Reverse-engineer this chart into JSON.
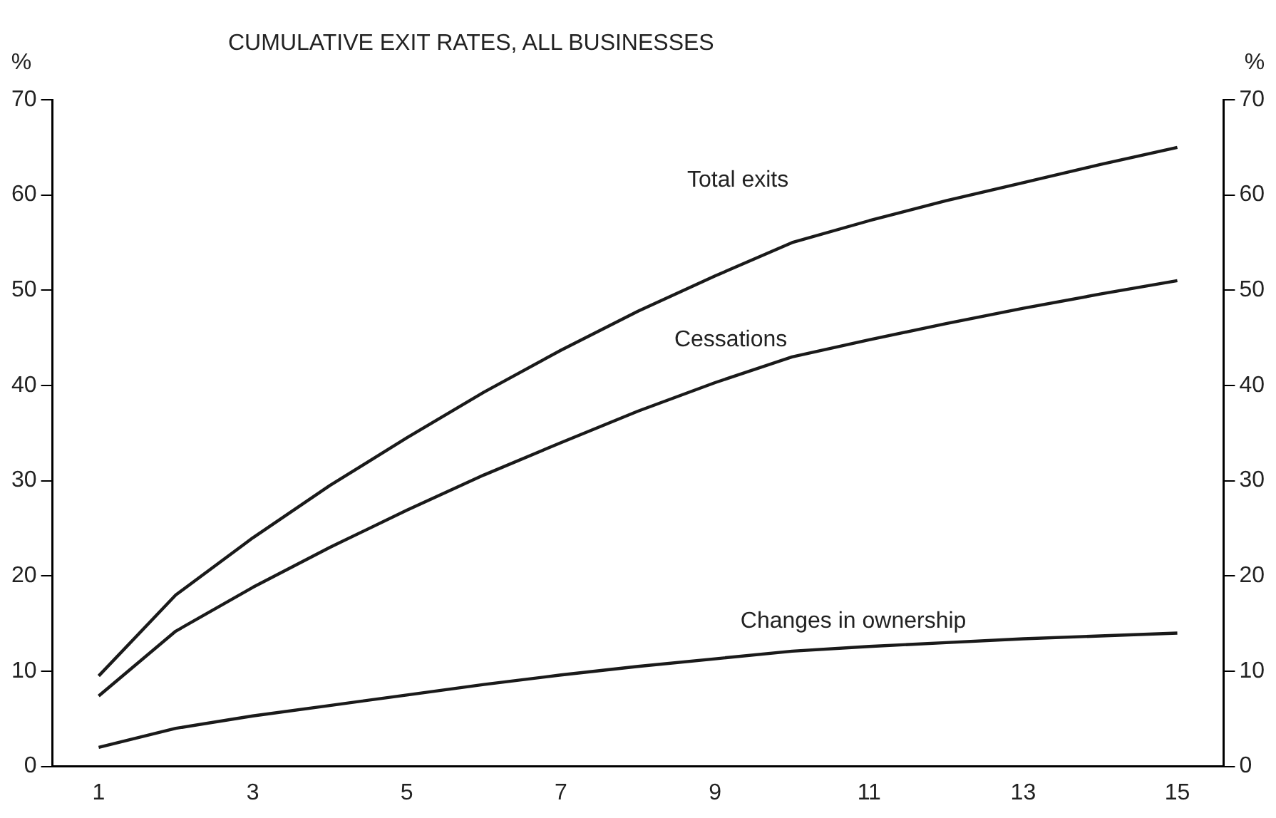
{
  "chart_data": {
    "type": "line",
    "title": "CUMULATIVE EXIT RATES, ALL BUSINESSES",
    "ylabel": "%",
    "y2label": "%",
    "x": [
      1,
      2,
      3,
      4,
      5,
      6,
      7,
      8,
      9,
      10,
      11,
      12,
      13,
      14,
      15
    ],
    "series": [
      {
        "name": "Total exits",
        "color": "#1a1a1a",
        "values": [
          9.5,
          18,
          24,
          29.5,
          34.5,
          39.3,
          43.7,
          47.8,
          51.5,
          55,
          57.3,
          59.4,
          61.3,
          63.2,
          65
        ]
      },
      {
        "name": "Cessations",
        "color": "#1a1a1a",
        "values": [
          7.4,
          14.2,
          18.8,
          23,
          26.9,
          30.6,
          34,
          37.3,
          40.3,
          43,
          44.8,
          46.5,
          48.1,
          49.6,
          51
        ]
      },
      {
        "name": "Changes in ownership",
        "color": "#1a1a1a",
        "values": [
          2,
          4,
          5.3,
          6.4,
          7.5,
          8.6,
          9.6,
          10.5,
          11.3,
          12.1,
          12.6,
          13,
          13.4,
          13.7,
          14
        ]
      }
    ],
    "xlim": [
      0.4,
      15.6
    ],
    "xticks": [
      1,
      3,
      5,
      7,
      9,
      11,
      13,
      15
    ],
    "ylim": [
      0,
      70
    ],
    "yticks": [
      0,
      10,
      20,
      30,
      40,
      50,
      60,
      70
    ],
    "y2lim": [
      0,
      70
    ],
    "y2ticks": [
      0,
      10,
      20,
      30,
      40,
      50,
      60,
      70
    ],
    "grid": false,
    "legend": false,
    "marker": "none",
    "line_style": "solid"
  }
}
